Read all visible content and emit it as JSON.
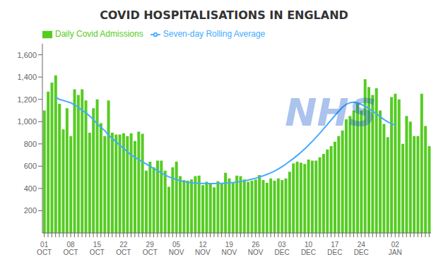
{
  "chart_data": {
    "type": "bar",
    "title": "COVID HOSPITALISATIONS IN ENGLAND",
    "categories": [
      "01\nOCT",
      null,
      null,
      null,
      null,
      null,
      null,
      "08\nOCT",
      null,
      null,
      null,
      null,
      null,
      null,
      "15\nOCT",
      null,
      null,
      null,
      null,
      null,
      null,
      "22\nOCT",
      null,
      null,
      null,
      null,
      null,
      null,
      "29\nOCT",
      null,
      null,
      null,
      null,
      null,
      null,
      "05\nNOV",
      null,
      null,
      null,
      null,
      null,
      null,
      "12\nNOV",
      null,
      null,
      null,
      null,
      null,
      null,
      "19\nNOV",
      null,
      null,
      null,
      null,
      null,
      null,
      "26\nNOV",
      null,
      null,
      null,
      null,
      null,
      null,
      "03\nDEC",
      null,
      null,
      null,
      null,
      null,
      null,
      "10\nDEC",
      null,
      null,
      null,
      null,
      null,
      null,
      "17\nDEC",
      null,
      null,
      null,
      null,
      null,
      null,
      "24\nDEC",
      null,
      null,
      null,
      null,
      null,
      null,
      null,
      null,
      "02\nJAN",
      null,
      null,
      null,
      null,
      null,
      null,
      null,
      null,
      null
    ],
    "series": [
      {
        "name": "Daily Covid Admissions",
        "type": "bar",
        "color": "#55cc22",
        "values": [
          1100,
          1270,
          1350,
          1415,
          1160,
          930,
          1120,
          870,
          1290,
          1240,
          1290,
          1190,
          900,
          1120,
          1200,
          985,
          870,
          1190,
          900,
          885,
          885,
          895,
          870,
          895,
          825,
          910,
          890,
          560,
          640,
          590,
          650,
          650,
          560,
          415,
          590,
          640,
          510,
          475,
          470,
          480,
          510,
          515,
          430,
          460,
          445,
          410,
          465,
          450,
          540,
          490,
          455,
          515,
          510,
          480,
          460,
          470,
          480,
          520,
          475,
          450,
          490,
          470,
          490,
          475,
          490,
          550,
          625,
          640,
          630,
          620,
          660,
          650,
          650,
          680,
          710,
          750,
          780,
          820,
          870,
          920,
          1020,
          1050,
          1100,
          1170,
          1100,
          1380,
          1310,
          1240,
          1300,
          1100,
          980,
          860,
          1220,
          1250,
          1200,
          800,
          1050,
          1000,
          870,
          870,
          1250,
          960,
          780
        ]
      },
      {
        "name": "Seven-day Rolling Average",
        "type": "line",
        "color": "#44aaff",
        "values": [
          null,
          null,
          null,
          1220,
          1200,
          1190,
          1180,
          1170,
          1150,
          1130,
          1100,
          1080,
          1050,
          1020,
          980,
          950,
          920,
          880,
          850,
          820,
          790,
          760,
          730,
          700,
          680,
          660,
          640,
          620,
          600,
          580,
          560,
          540,
          520,
          505,
          492,
          480,
          470,
          462,
          455,
          450,
          448,
          446,
          445,
          444,
          444,
          444,
          445,
          446,
          448,
          450,
          453,
          457,
          462,
          468,
          475,
          483,
          492,
          502,
          513,
          526,
          540,
          556,
          574,
          595,
          618,
          643,
          668,
          695,
          724,
          755,
          788,
          822,
          858,
          895,
          934,
          974,
          1014,
          1054,
          1092,
          1128,
          1155,
          1170,
          1175,
          1168,
          1155,
          1138,
          1118,
          1095,
          1070,
          1045,
          1020,
          998,
          980,
          968,
          null,
          null,
          null,
          null,
          null,
          null,
          null,
          null,
          null
        ]
      }
    ],
    "ylim": [
      0,
      1700
    ],
    "yticks": [
      200,
      400,
      600,
      800,
      {
        "value": 1000,
        "label": "1,000"
      },
      {
        "value": 1200,
        "label": "1,200"
      },
      {
        "value": 1400,
        "label": "1,400"
      },
      {
        "value": 1600,
        "label": "1,600"
      }
    ],
    "grid": false,
    "legend": "top left",
    "annotations": [
      "NHS"
    ]
  }
}
